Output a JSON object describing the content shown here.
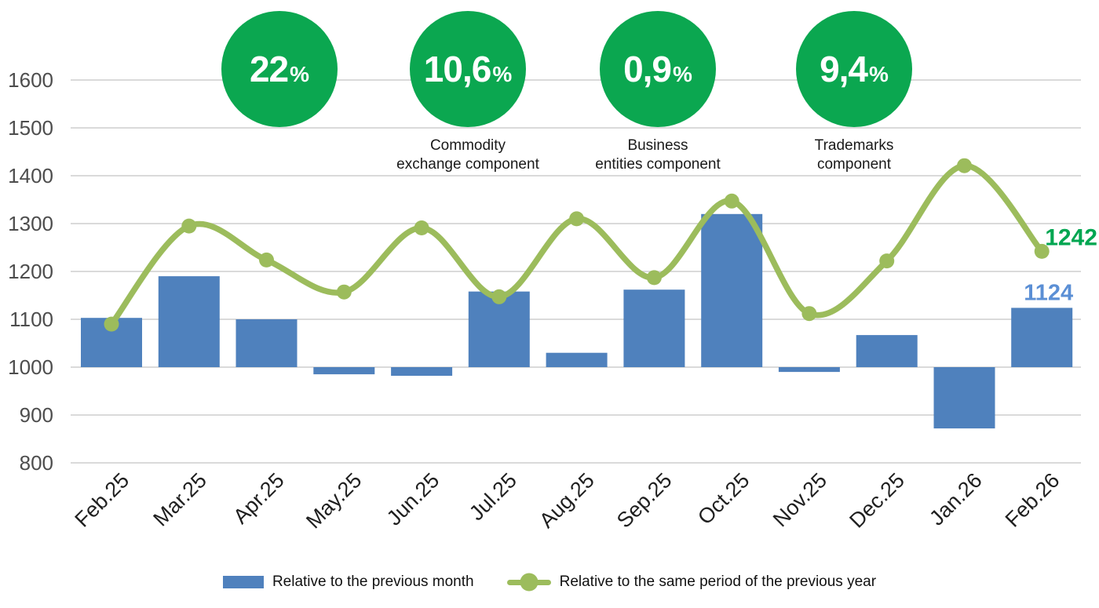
{
  "kpis": {
    "circle_color": "#0ba750",
    "items": [
      {
        "value": "22",
        "pct": "%",
        "label1": "",
        "label2": ""
      },
      {
        "value": "10,6",
        "pct": "%",
        "label1": "Commodity",
        "label2": "exchange component"
      },
      {
        "value": "0,9",
        "pct": "%",
        "label1": "Business",
        "label2": "entities component"
      },
      {
        "value": "9,4",
        "pct": "%",
        "label1": "Trademarks",
        "label2": "component"
      }
    ]
  },
  "chart_data": {
    "type": "bar+line",
    "categories": [
      "Feb.25",
      "Mar.25",
      "Apr.25",
      "May.25",
      "Jun.25",
      "Jul.25",
      "Aug.25",
      "Sep.25",
      "Oct.25",
      "Nov.25",
      "Dec.25",
      "Jan.26",
      "Feb.26"
    ],
    "series": [
      {
        "name": "Relative to the previous month",
        "type": "bar",
        "color": "#4f81bd",
        "values": [
          1103,
          1190,
          1100,
          985,
          982,
          1158,
          1030,
          1162,
          1320,
          990,
          1067,
          872,
          1124
        ]
      },
      {
        "name": "Relative to the same period of the previous year",
        "type": "line",
        "color": "#9cbc5c",
        "values": [
          1090,
          1295,
          1224,
          1157,
          1291,
          1147,
          1310,
          1187,
          1347,
          1112,
          1222,
          1421,
          1242
        ]
      }
    ],
    "bar_baseline": 1000,
    "ylim": [
      800,
      1600
    ],
    "ytick_step": 100,
    "grid": true,
    "grid_color": "#cdcdcd",
    "axis_text_color": "#4d4d4d",
    "xaxis_text_color": "#1f1f1f",
    "legend_position": "bottom",
    "end_labels": [
      {
        "text": "1124",
        "color": "#5b8fd5"
      },
      {
        "text": "1242",
        "color": "#00a651"
      }
    ]
  }
}
